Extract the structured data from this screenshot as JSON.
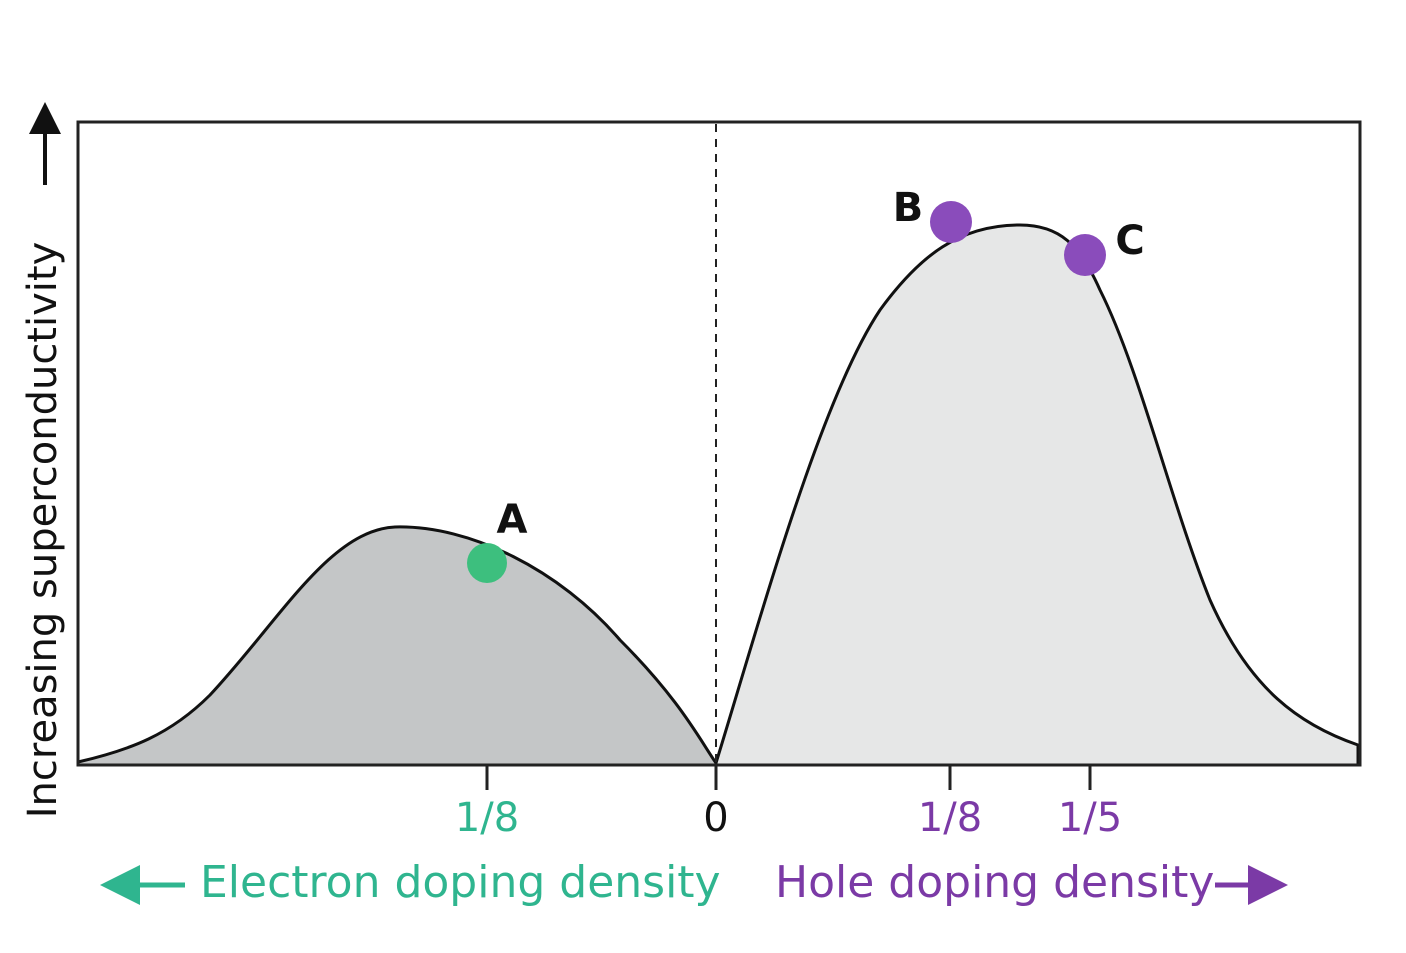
{
  "y_axis_label": "Increasing superconductivity",
  "x_axis": {
    "ticks": [
      "1/8",
      "0",
      "1/8",
      "1/5"
    ],
    "electron_label": "Electron doping density",
    "hole_label": "Hole doping density"
  },
  "points": [
    "A",
    "B",
    "C"
  ]
}
